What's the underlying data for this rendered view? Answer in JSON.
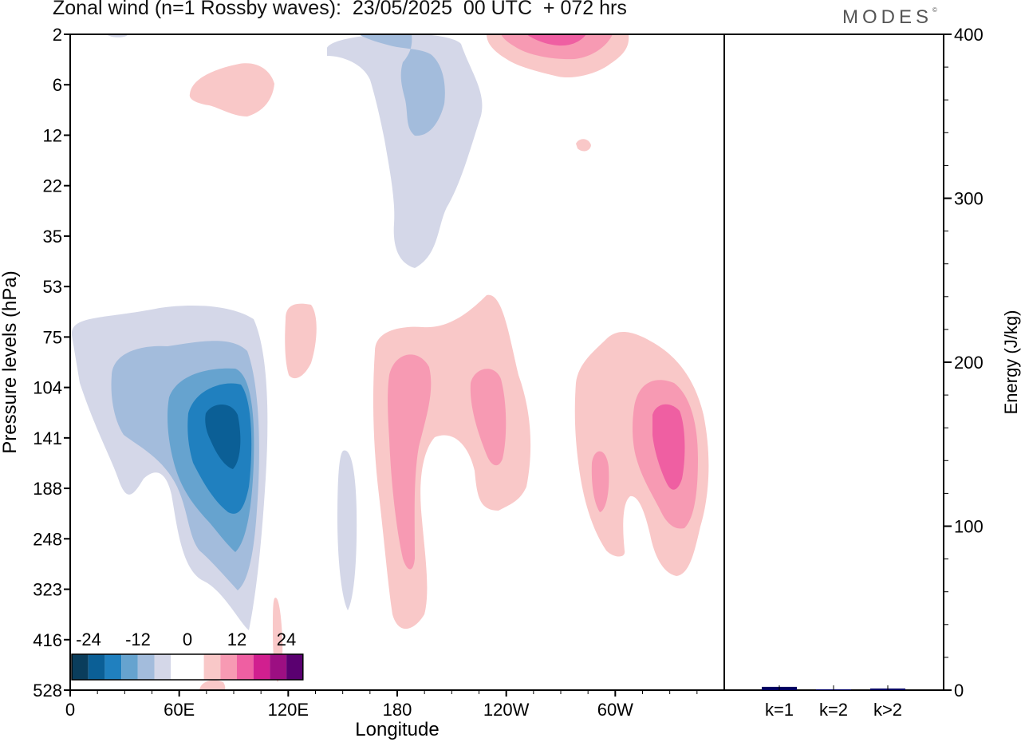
{
  "header": {
    "title": "Zonal wind (n=1 Rossby waves):  23/05/2025  00 UTC  + 072 hrs",
    "brand": "MODES",
    "brand_mark": "©"
  },
  "colors": {
    "neg": [
      "#0a3d5c",
      "#0b5f96",
      "#2080bf",
      "#66a3cf",
      "#a3bcdc",
      "#d4d7e8"
    ],
    "zero": "#ffffff",
    "pos": [
      "#f9c8c8",
      "#f79ab3",
      "#ef5fa2",
      "#d11f8f",
      "#9c0f82",
      "#5a0070"
    ],
    "bar": "#000060"
  },
  "chart_data": [
    {
      "type": "heatmap",
      "title": "Zonal wind (n=1 Rossby waves):  23/05/2025  00 UTC  + 072 hrs",
      "xlabel": "Longitude",
      "ylabel": "Pressure levels (hPa)",
      "x_ticks": [
        "0",
        "60E",
        "120E",
        "180",
        "120W",
        "60W"
      ],
      "y_ticks": [
        "2",
        "6",
        "12",
        "22",
        "35",
        "53",
        "75",
        "104",
        "141",
        "188",
        "248",
        "323",
        "416",
        "528"
      ],
      "colorbar_labels": [
        "-24",
        "-12",
        "0",
        "12",
        "24"
      ],
      "contour_levels": [
        -24,
        -20,
        -16,
        -12,
        -8,
        -4,
        4,
        8,
        12,
        16,
        20,
        24
      ],
      "features": [
        {
          "sign": "negative",
          "center_lon": 85,
          "center_level_hPa": 141,
          "min_value": -20
        },
        {
          "sign": "negative",
          "center_lon": 190,
          "center_level_hPa": 6,
          "min_value": -8
        },
        {
          "sign": "negative",
          "center_lon": 150,
          "center_level_hPa": 248,
          "min_value": -4
        },
        {
          "sign": "positive",
          "center_lon": 190,
          "center_level_hPa": 188,
          "min_value": 8
        },
        {
          "sign": "positive",
          "center_lon": 230,
          "center_level_hPa": 120,
          "min_value": 8
        },
        {
          "sign": "positive",
          "center_lon": 330,
          "center_level_hPa": 141,
          "min_value": 12
        },
        {
          "sign": "positive",
          "center_lon": 265,
          "center_level_hPa": 2,
          "min_value": 12
        },
        {
          "sign": "positive",
          "center_lon": 75,
          "center_level_hPa": 6,
          "min_value": 4
        },
        {
          "sign": "positive",
          "center_lon": 120,
          "center_level_hPa": 90,
          "min_value": 4
        }
      ]
    },
    {
      "type": "bar",
      "categories": [
        "k=1",
        "k=2",
        "k>2"
      ],
      "values": [
        2.0,
        0.5,
        1.0
      ],
      "ylabel": "Energy (J/kg)",
      "ylim": [
        0,
        400
      ],
      "y_ticks": [
        "0",
        "100",
        "200",
        "300",
        "400"
      ]
    }
  ]
}
